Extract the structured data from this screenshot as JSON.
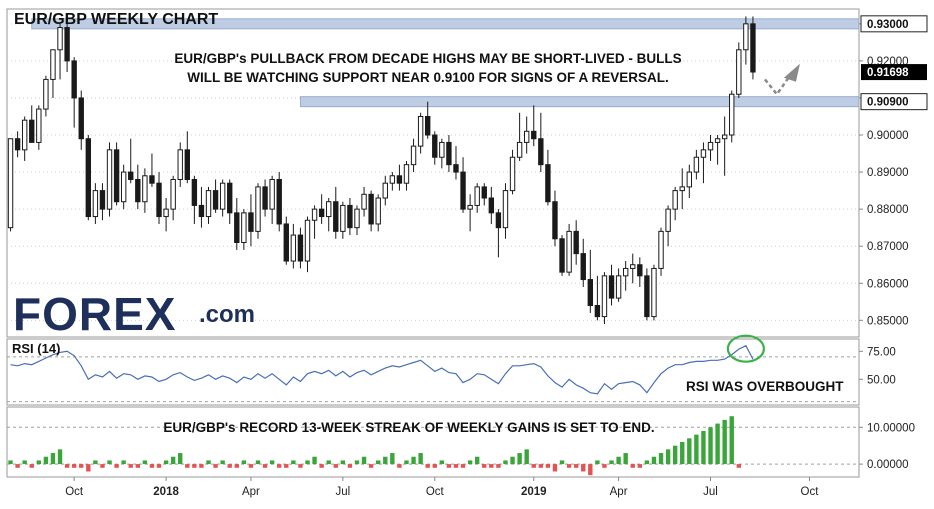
{
  "chart_data": [
    {
      "type": "candlestick",
      "title": "EUR/GBP WEEKLY CHART",
      "annotation_lines": [
        "EUR/GBP's PULLBACK FROM DECADE HIGHS MAY BE SHORT-LIVED - BULLS",
        "WILL BE WATCHING  SUPPORT NEAR 0.9100 FOR SIGNS OF A REVERSAL."
      ],
      "ylim": [
        0.8455,
        0.934
      ],
      "y_ticks": [
        "0.85000",
        "0.86000",
        "0.87000",
        "0.88000",
        "0.89000",
        "0.90000",
        "0.91000",
        "0.92000",
        "0.93000"
      ],
      "levels": [
        {
          "value": 0.93,
          "label": "0.93000"
        },
        {
          "value": 0.909,
          "label": "0.90900"
        }
      ],
      "last_price": {
        "value": 0.91698,
        "label": "0.91698"
      },
      "candles": [
        [
          0.875,
          0.899,
          0.874,
          0.899
        ],
        [
          0.899,
          0.901,
          0.894,
          0.896
        ],
        [
          0.896,
          0.905,
          0.893,
          0.904
        ],
        [
          0.904,
          0.908,
          0.898,
          0.898
        ],
        [
          0.898,
          0.908,
          0.896,
          0.907
        ],
        [
          0.907,
          0.916,
          0.905,
          0.915
        ],
        [
          0.915,
          0.923,
          0.91,
          0.923
        ],
        [
          0.923,
          0.93,
          0.915,
          0.929
        ],
        [
          0.929,
          0.93,
          0.917,
          0.92
        ],
        [
          0.92,
          0.921,
          0.902,
          0.91
        ],
        [
          0.91,
          0.912,
          0.896,
          0.899
        ],
        [
          0.899,
          0.9,
          0.877,
          0.878
        ],
        [
          0.878,
          0.887,
          0.876,
          0.885
        ],
        [
          0.885,
          0.887,
          0.877,
          0.88
        ],
        [
          0.88,
          0.898,
          0.878,
          0.896
        ],
        [
          0.896,
          0.898,
          0.881,
          0.882
        ],
        [
          0.882,
          0.892,
          0.88,
          0.89
        ],
        [
          0.89,
          0.899,
          0.887,
          0.888
        ],
        [
          0.888,
          0.892,
          0.88,
          0.882
        ],
        [
          0.882,
          0.891,
          0.879,
          0.889
        ],
        [
          0.889,
          0.895,
          0.886,
          0.887
        ],
        [
          0.887,
          0.89,
          0.876,
          0.878
        ],
        [
          0.878,
          0.883,
          0.874,
          0.88
        ],
        [
          0.88,
          0.889,
          0.877,
          0.888
        ],
        [
          0.888,
          0.898,
          0.886,
          0.896
        ],
        [
          0.896,
          0.901,
          0.887,
          0.888
        ],
        [
          0.888,
          0.889,
          0.876,
          0.881
        ],
        [
          0.881,
          0.886,
          0.875,
          0.878
        ],
        [
          0.878,
          0.886,
          0.876,
          0.885
        ],
        [
          0.885,
          0.888,
          0.879,
          0.88
        ],
        [
          0.88,
          0.888,
          0.878,
          0.887
        ],
        [
          0.887,
          0.888,
          0.876,
          0.879
        ],
        [
          0.879,
          0.883,
          0.869,
          0.871
        ],
        [
          0.871,
          0.88,
          0.869,
          0.879
        ],
        [
          0.879,
          0.884,
          0.87,
          0.874
        ],
        [
          0.874,
          0.887,
          0.872,
          0.886
        ],
        [
          0.886,
          0.888,
          0.878,
          0.88
        ],
        [
          0.88,
          0.889,
          0.876,
          0.888
        ],
        [
          0.888,
          0.89,
          0.874,
          0.876
        ],
        [
          0.876,
          0.878,
          0.865,
          0.866
        ],
        [
          0.866,
          0.876,
          0.864,
          0.873
        ],
        [
          0.873,
          0.875,
          0.864,
          0.866
        ],
        [
          0.866,
          0.878,
          0.863,
          0.877
        ],
        [
          0.877,
          0.881,
          0.872,
          0.88
        ],
        [
          0.88,
          0.884,
          0.876,
          0.878
        ],
        [
          0.878,
          0.883,
          0.874,
          0.882
        ],
        [
          0.882,
          0.886,
          0.872,
          0.874
        ],
        [
          0.874,
          0.882,
          0.872,
          0.881
        ],
        [
          0.881,
          0.883,
          0.873,
          0.875
        ],
        [
          0.875,
          0.881,
          0.873,
          0.88
        ],
        [
          0.88,
          0.886,
          0.878,
          0.884
        ],
        [
          0.884,
          0.885,
          0.874,
          0.876
        ],
        [
          0.876,
          0.884,
          0.874,
          0.883
        ],
        [
          0.883,
          0.889,
          0.881,
          0.887
        ],
        [
          0.887,
          0.89,
          0.885,
          0.889
        ],
        [
          0.889,
          0.892,
          0.885,
          0.887
        ],
        [
          0.887,
          0.893,
          0.885,
          0.892
        ],
        [
          0.892,
          0.899,
          0.89,
          0.897
        ],
        [
          0.897,
          0.906,
          0.895,
          0.905
        ],
        [
          0.905,
          0.909,
          0.899,
          0.9
        ],
        [
          0.9,
          0.901,
          0.892,
          0.894
        ],
        [
          0.894,
          0.899,
          0.891,
          0.898
        ],
        [
          0.898,
          0.9,
          0.89,
          0.892
        ],
        [
          0.892,
          0.897,
          0.888,
          0.89
        ],
        [
          0.89,
          0.894,
          0.879,
          0.88
        ],
        [
          0.88,
          0.884,
          0.874,
          0.881
        ],
        [
          0.881,
          0.887,
          0.879,
          0.886
        ],
        [
          0.886,
          0.887,
          0.881,
          0.883
        ],
        [
          0.883,
          0.886,
          0.876,
          0.879
        ],
        [
          0.879,
          0.88,
          0.867,
          0.875
        ],
        [
          0.875,
          0.887,
          0.872,
          0.885
        ],
        [
          0.885,
          0.896,
          0.884,
          0.894
        ],
        [
          0.894,
          0.906,
          0.893,
          0.898
        ],
        [
          0.898,
          0.905,
          0.895,
          0.901
        ],
        [
          0.901,
          0.908,
          0.897,
          0.899
        ],
        [
          0.899,
          0.906,
          0.89,
          0.892
        ],
        [
          0.892,
          0.896,
          0.881,
          0.882
        ],
        [
          0.882,
          0.885,
          0.87,
          0.872
        ],
        [
          0.872,
          0.873,
          0.862,
          0.863
        ],
        [
          0.863,
          0.876,
          0.862,
          0.874
        ],
        [
          0.874,
          0.877,
          0.865,
          0.868
        ],
        [
          0.868,
          0.872,
          0.859,
          0.861
        ],
        [
          0.861,
          0.869,
          0.852,
          0.854
        ],
        [
          0.854,
          0.862,
          0.85,
          0.851
        ],
        [
          0.851,
          0.863,
          0.849,
          0.862
        ],
        [
          0.862,
          0.865,
          0.854,
          0.856
        ],
        [
          0.856,
          0.864,
          0.855,
          0.862
        ],
        [
          0.862,
          0.866,
          0.858,
          0.864
        ],
        [
          0.864,
          0.868,
          0.86,
          0.865
        ],
        [
          0.865,
          0.867,
          0.859,
          0.862
        ],
        [
          0.862,
          0.864,
          0.85,
          0.851
        ],
        [
          0.851,
          0.865,
          0.85,
          0.864
        ],
        [
          0.864,
          0.875,
          0.862,
          0.874
        ],
        [
          0.874,
          0.881,
          0.87,
          0.88
        ],
        [
          0.88,
          0.886,
          0.877,
          0.885
        ],
        [
          0.885,
          0.891,
          0.88,
          0.886
        ],
        [
          0.886,
          0.892,
          0.883,
          0.89
        ],
        [
          0.89,
          0.896,
          0.888,
          0.894
        ],
        [
          0.894,
          0.898,
          0.887,
          0.896
        ],
        [
          0.896,
          0.9,
          0.893,
          0.898
        ],
        [
          0.898,
          0.9,
          0.892,
          0.899
        ],
        [
          0.899,
          0.905,
          0.889,
          0.9
        ],
        [
          0.9,
          0.912,
          0.898,
          0.911
        ],
        [
          0.911,
          0.925,
          0.91,
          0.923
        ],
        [
          0.923,
          0.932,
          0.919,
          0.93
        ],
        [
          0.93,
          0.932,
          0.915,
          0.917
        ]
      ],
      "x_ticks": [
        {
          "label": "Oct",
          "index": 9,
          "bold": false
        },
        {
          "label": "2018",
          "index": 22,
          "bold": true
        },
        {
          "label": "Apr",
          "index": 34,
          "bold": false
        },
        {
          "label": "Jul",
          "index": 47,
          "bold": false
        },
        {
          "label": "Oct",
          "index": 60,
          "bold": false
        },
        {
          "label": "2019",
          "index": 74,
          "bold": true
        },
        {
          "label": "Apr",
          "index": 86,
          "bold": false
        },
        {
          "label": "Jul",
          "index": 99,
          "bold": false
        },
        {
          "label": "Oct",
          "index": 113,
          "bold": false
        }
      ],
      "x_index_range": [
        -0.5,
        120
      ]
    },
    {
      "type": "line",
      "series_label": "RSI (14)",
      "note": "RSI WAS OVERBOUGHT",
      "ylim": [
        27,
        86
      ],
      "y_ticks": [
        "75.00",
        "50.00"
      ],
      "levels": [
        70,
        30
      ],
      "color": "#4a6fb5",
      "values": [
        63,
        62,
        64,
        63,
        66,
        69,
        72,
        74,
        75,
        71,
        62,
        50,
        54,
        52,
        57,
        51,
        55,
        54,
        50,
        53,
        52,
        48,
        50,
        54,
        56,
        52,
        49,
        51,
        54,
        50,
        53,
        51,
        47,
        52,
        50,
        55,
        51,
        55,
        50,
        45,
        52,
        48,
        55,
        57,
        55,
        58,
        53,
        57,
        52,
        56,
        58,
        54,
        57,
        60,
        62,
        61,
        63,
        65,
        67,
        62,
        57,
        60,
        56,
        55,
        47,
        50,
        55,
        54,
        50,
        46,
        55,
        62,
        62,
        63,
        64,
        61,
        53,
        47,
        43,
        50,
        45,
        42,
        38,
        37,
        46,
        41,
        46,
        47,
        48,
        45,
        38,
        47,
        55,
        60,
        63,
        63,
        65,
        66,
        66,
        67,
        67,
        68,
        72,
        77,
        80,
        68
      ]
    },
    {
      "type": "bar",
      "series_label": "EUR/GBP's RECORD 13-WEEK STREAK OF WEEKLY GAINS IS SET TO END.",
      "ylim": [
        -3.5,
        15.5
      ],
      "y_ticks": [
        "10.00000",
        "0.00000"
      ],
      "up_color": "#3aa53a",
      "down_color": "#e35353",
      "values": [
        1,
        -1,
        1,
        -1,
        1,
        2,
        3,
        4,
        -1,
        -1,
        -1,
        -2,
        1,
        -1,
        1,
        -1,
        1,
        -1,
        -1,
        1,
        -1,
        -1,
        1,
        2,
        3,
        -1,
        -1,
        -1,
        1,
        -1,
        1,
        -1,
        -1,
        1,
        -1,
        1,
        -1,
        1,
        -1,
        -1,
        1,
        -1,
        1,
        2,
        -1,
        1,
        -1,
        1,
        -1,
        1,
        2,
        -1,
        1,
        2,
        3,
        -1,
        1,
        2,
        3,
        -1,
        -1,
        1,
        -1,
        -1,
        -1,
        1,
        2,
        -1,
        -1,
        -1,
        1,
        2,
        3,
        4,
        -1,
        -1,
        -1,
        -2,
        1,
        -1,
        -1,
        -2,
        -3,
        1,
        -1,
        1,
        2,
        3,
        -1,
        -1,
        1,
        2,
        3,
        4,
        5,
        6,
        7,
        8,
        9,
        10,
        11,
        12,
        13,
        -1
      ]
    }
  ],
  "brand": {
    "logo_main": "FOREX",
    "logo_suffix": ".com"
  },
  "colors": {
    "frame": "#9a9a9a",
    "candle": "#1a1a1a",
    "band": "#b8c8e0",
    "band_edge": "#8fa6c9",
    "circle": "#3db04b",
    "last_price_bg": "#000000"
  }
}
